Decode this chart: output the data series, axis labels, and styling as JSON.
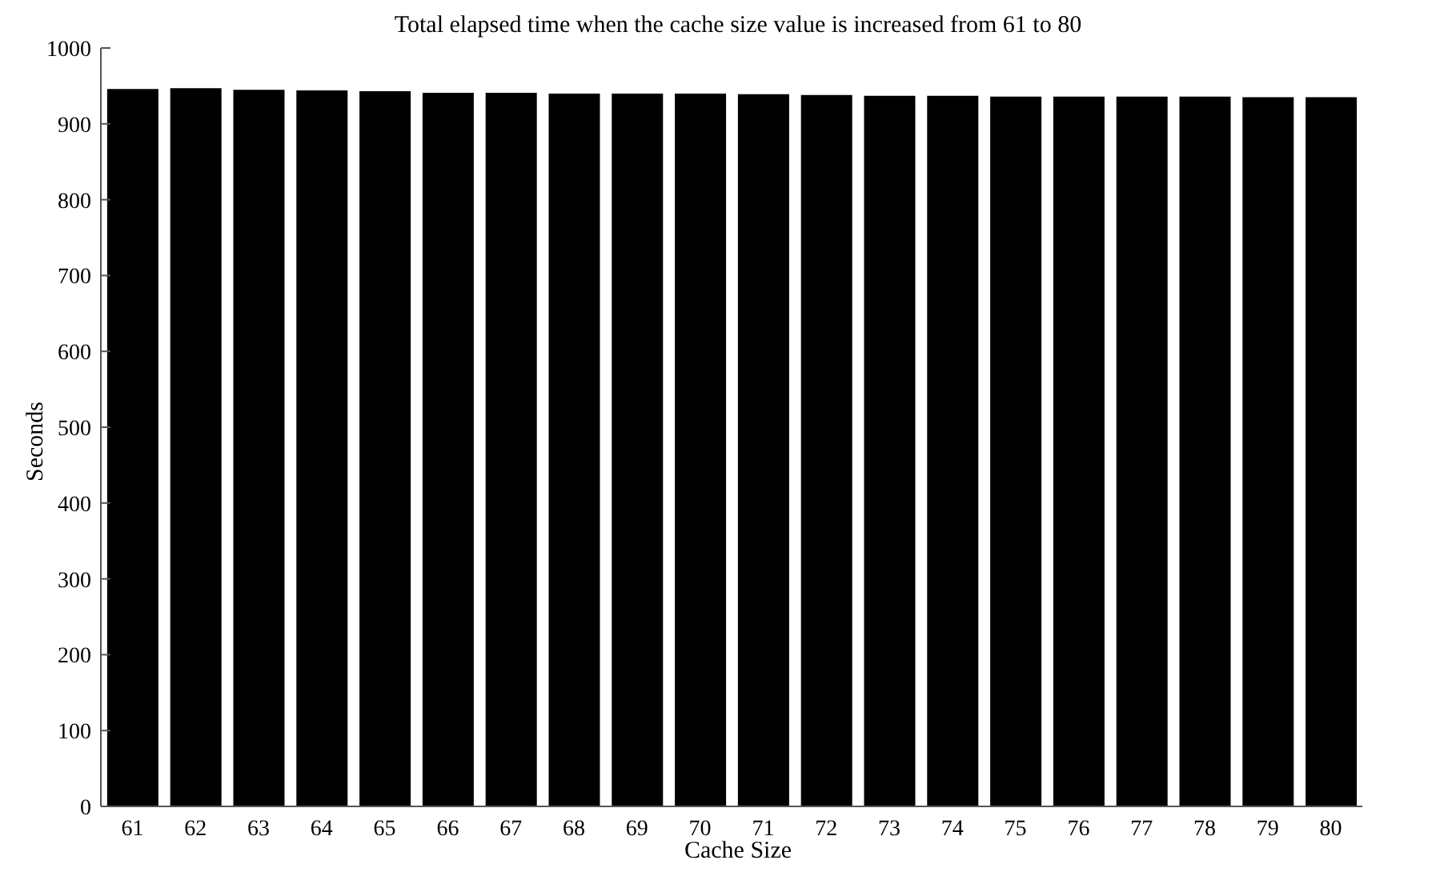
{
  "chart_data": {
    "type": "bar",
    "title": "Total elapsed time when the cache size value is increased from 61 to 80",
    "xlabel": "Cache Size",
    "ylabel": "Seconds",
    "categories": [
      "61",
      "62",
      "63",
      "64",
      "65",
      "66",
      "67",
      "68",
      "69",
      "70",
      "71",
      "72",
      "73",
      "74",
      "75",
      "76",
      "77",
      "78",
      "79",
      "80"
    ],
    "values": [
      946,
      947,
      945,
      944,
      943,
      941,
      941,
      940,
      940,
      940,
      939,
      938,
      937,
      937,
      936,
      936,
      936,
      936,
      935,
      935
    ],
    "color": "#000000",
    "ylim": [
      0,
      1000
    ],
    "yticks": [
      0,
      100,
      200,
      300,
      400,
      500,
      600,
      700,
      800,
      900,
      1000
    ],
    "grid": false
  }
}
